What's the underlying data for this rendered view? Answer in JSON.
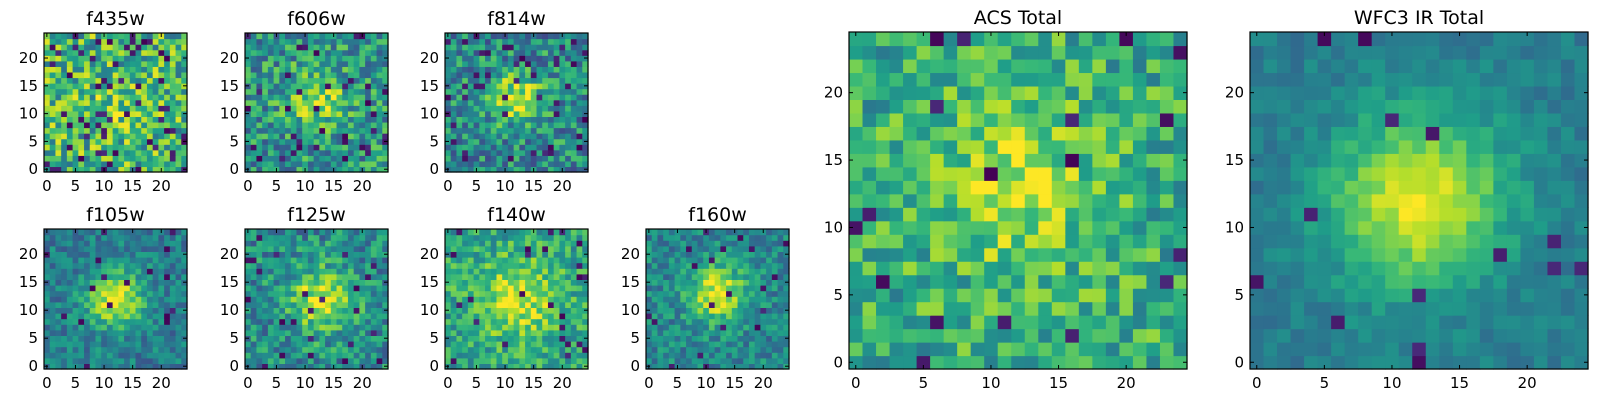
{
  "chart_data": [
    {
      "type": "heatmap",
      "title": "f435w",
      "band": "f435w",
      "peak_x": 12,
      "peak_y": 12,
      "signal": 0.1,
      "sigma": 3.5,
      "noise": 0.3,
      "base": 0.66,
      "dark_fraction": 0.09,
      "seed": 11,
      "xticks": [
        "0",
        "5",
        "10",
        "15",
        "20"
      ],
      "yticks": [
        "0",
        "5",
        "10",
        "15",
        "20"
      ],
      "xlim": [
        0,
        25
      ],
      "ylim": [
        0,
        25
      ],
      "cmap": "viridis"
    },
    {
      "type": "heatmap",
      "title": "f606w",
      "band": "f606w",
      "peak_x": 12,
      "peak_y": 13,
      "signal": 0.35,
      "sigma": 3.5,
      "noise": 0.26,
      "base": 0.52,
      "dark_fraction": 0.05,
      "seed": 22,
      "xticks": [
        "0",
        "5",
        "10",
        "15",
        "20"
      ],
      "yticks": [
        "0",
        "5",
        "10",
        "15",
        "20"
      ],
      "xlim": [
        0,
        25
      ],
      "ylim": [
        0,
        25
      ],
      "cmap": "viridis"
    },
    {
      "type": "heatmap",
      "title": "f814w",
      "band": "f814w",
      "peak_x": 12,
      "peak_y": 13,
      "signal": 0.45,
      "sigma": 3.0,
      "noise": 0.26,
      "base": 0.48,
      "dark_fraction": 0.06,
      "seed": 33,
      "xticks": [
        "0",
        "5",
        "10",
        "15",
        "20"
      ],
      "yticks": [
        "0",
        "5",
        "10",
        "15",
        "20"
      ],
      "xlim": [
        0,
        25
      ],
      "ylim": [
        0,
        25
      ],
      "cmap": "viridis"
    },
    {
      "type": "heatmap",
      "title": "f105w",
      "band": "f105w",
      "peak_x": 12,
      "peak_y": 12,
      "signal": 0.55,
      "sigma": 3.5,
      "noise": 0.16,
      "base": 0.42,
      "dark_fraction": 0.03,
      "seed": 44,
      "xticks": [
        "0",
        "5",
        "10",
        "15",
        "20"
      ],
      "yticks": [
        "0",
        "5",
        "10",
        "15",
        "20"
      ],
      "xlim": [
        0,
        25
      ],
      "ylim": [
        0,
        25
      ],
      "cmap": "viridis"
    },
    {
      "type": "heatmap",
      "title": "f125w",
      "band": "f125w",
      "peak_x": 13,
      "peak_y": 12,
      "signal": 0.45,
      "sigma": 4.0,
      "noise": 0.22,
      "base": 0.48,
      "dark_fraction": 0.04,
      "seed": 55,
      "xticks": [
        "0",
        "5",
        "10",
        "15",
        "20"
      ],
      "yticks": [
        "0",
        "5",
        "10",
        "15",
        "20"
      ],
      "xlim": [
        0,
        25
      ],
      "ylim": [
        0,
        25
      ],
      "cmap": "viridis"
    },
    {
      "type": "heatmap",
      "title": "f140w",
      "band": "f140w",
      "peak_x": 12,
      "peak_y": 12,
      "signal": 0.35,
      "sigma": 5.0,
      "noise": 0.2,
      "base": 0.58,
      "dark_fraction": 0.04,
      "seed": 66,
      "xticks": [
        "0",
        "5",
        "10",
        "15",
        "20"
      ],
      "yticks": [
        "0",
        "5",
        "10",
        "15",
        "20"
      ],
      "xlim": [
        0,
        25
      ],
      "ylim": [
        0,
        25
      ],
      "cmap": "viridis"
    },
    {
      "type": "heatmap",
      "title": "f160w",
      "band": "f160w",
      "peak_x": 12,
      "peak_y": 13,
      "signal": 0.5,
      "sigma": 3.5,
      "noise": 0.17,
      "base": 0.46,
      "dark_fraction": 0.04,
      "seed": 77,
      "xticks": [
        "0",
        "5",
        "10",
        "15",
        "20"
      ],
      "yticks": [
        "0",
        "5",
        "10",
        "15",
        "20"
      ],
      "xlim": [
        0,
        25
      ],
      "ylim": [
        0,
        25
      ],
      "cmap": "viridis"
    },
    {
      "type": "heatmap",
      "title": "ACS Total",
      "band": "ACS Total",
      "peak_x": 12,
      "peak_y": 13,
      "signal": 0.3,
      "sigma": 4.0,
      "noise": 0.22,
      "base": 0.62,
      "dark_fraction": 0.03,
      "seed": 88,
      "xticks": [
        "0",
        "5",
        "10",
        "15",
        "20"
      ],
      "yticks": [
        "0",
        "5",
        "10",
        "15",
        "20"
      ],
      "xlim": [
        0,
        25
      ],
      "ylim": [
        0,
        25
      ],
      "cmap": "viridis"
    },
    {
      "type": "heatmap",
      "title": "WFC3 IR Total",
      "band": "WFC3 IR Total",
      "peak_x": 12,
      "peak_y": 12,
      "signal": 0.55,
      "sigma": 4.5,
      "noise": 0.08,
      "base": 0.42,
      "dark_fraction": 0.02,
      "seed": 99,
      "xticks": [
        "0",
        "5",
        "10",
        "15",
        "20"
      ],
      "yticks": [
        "0",
        "5",
        "10",
        "15",
        "20"
      ],
      "xlim": [
        0,
        25
      ],
      "ylim": [
        0,
        25
      ],
      "cmap": "viridis"
    }
  ]
}
